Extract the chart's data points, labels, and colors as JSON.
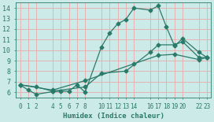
{
  "xlabel": "Humidex (Indice chaleur)",
  "bg_color": "#cceae7",
  "grid_color": "#e8aaaa",
  "line_color": "#2a7a6a",
  "xlim": [
    -0.5,
    23.5
  ],
  "ylim": [
    5.5,
    14.5
  ],
  "xticks": [
    0,
    1,
    2,
    4,
    5,
    6,
    7,
    8,
    10,
    11,
    12,
    13,
    14,
    16,
    17,
    18,
    19,
    20,
    22,
    23
  ],
  "xtick_labels": [
    "0",
    "1",
    "2",
    "4",
    "5",
    "6",
    "7",
    "8",
    "10",
    "11",
    "12",
    "13",
    "14",
    "16",
    "17",
    "18",
    "19",
    "20",
    "22",
    "23"
  ],
  "yticks": [
    6,
    7,
    8,
    9,
    10,
    11,
    12,
    13,
    14
  ],
  "series1_x": [
    0,
    1,
    2,
    4,
    5,
    6,
    7,
    8,
    10,
    11,
    12,
    13,
    14,
    16,
    17,
    18,
    19,
    20,
    22,
    23
  ],
  "series1_y": [
    6.7,
    6.2,
    5.8,
    6.05,
    6.1,
    6.1,
    6.7,
    6.0,
    10.3,
    11.6,
    12.5,
    12.9,
    14.0,
    13.8,
    14.2,
    12.2,
    10.4,
    11.1,
    9.8,
    9.3
  ],
  "series2_x": [
    0,
    2,
    4,
    8,
    10,
    13,
    16,
    17,
    19,
    20,
    22,
    23
  ],
  "series2_y": [
    6.7,
    6.5,
    6.1,
    6.5,
    7.8,
    8.0,
    9.8,
    10.5,
    10.5,
    10.8,
    9.3,
    9.3
  ],
  "series3_x": [
    0,
    4,
    8,
    14,
    17,
    19,
    22,
    23
  ],
  "series3_y": [
    6.7,
    6.2,
    7.1,
    8.7,
    9.5,
    9.6,
    9.1,
    9.3
  ],
  "marker_size": 2.5,
  "line_width": 0.9
}
